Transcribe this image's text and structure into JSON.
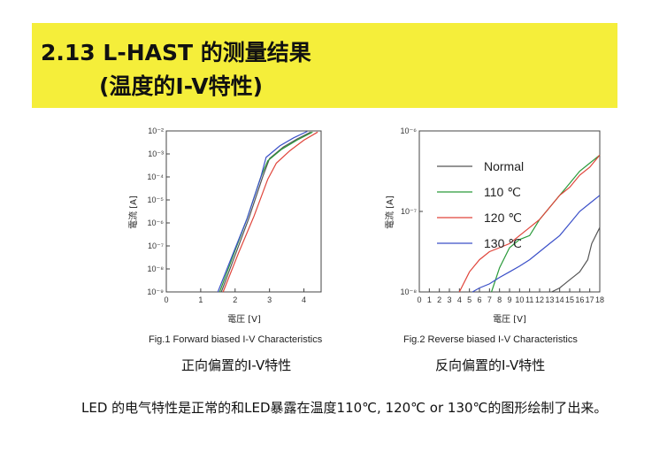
{
  "header": {
    "title_line1": "2.13 L-HAST 的测量结果",
    "title_line2": "(温度的I-V特性)"
  },
  "colors": {
    "banner": "#f5ee3a",
    "normal": "#555555",
    "t110": "#2a9a3a",
    "t120": "#e0443a",
    "t130": "#3a4fc8"
  },
  "chart_data": [
    {
      "type": "line",
      "scale": "log-y",
      "caption": "Fig.1 Forward biased I-V Characteristics",
      "xlabel": "電圧 [V]",
      "ylabel": "電流 [A]",
      "xlim": [
        0,
        4.5
      ],
      "xticks": [
        "0",
        "1",
        "2",
        "3",
        "4"
      ],
      "ylim_exp": [
        -9,
        -2
      ],
      "yticks": [
        "10⁻²",
        "10⁻³",
        "10⁻⁴",
        "10⁻⁵",
        "10⁻⁶",
        "10⁻⁷",
        "10⁻⁸",
        "10⁻⁹"
      ],
      "series": [
        {
          "color_key": "normal",
          "x": [
            1.6,
            2.0,
            2.4,
            2.8,
            3.0,
            3.4,
            3.8,
            4.2
          ],
          "log10_y": [
            -9,
            -7.4,
            -5.8,
            -4.0,
            -3.2,
            -2.7,
            -2.35,
            -2.05
          ]
        },
        {
          "color_key": "t110",
          "x": [
            1.55,
            1.95,
            2.35,
            2.75,
            2.95,
            3.35,
            3.8,
            4.25
          ],
          "log10_y": [
            -9,
            -7.4,
            -5.8,
            -4.0,
            -3.3,
            -2.8,
            -2.4,
            -2.05
          ]
        },
        {
          "color_key": "t120",
          "x": [
            1.65,
            2.1,
            2.55,
            2.95,
            3.2,
            3.6,
            4.0,
            4.4
          ],
          "log10_y": [
            -9,
            -7.3,
            -5.7,
            -4.1,
            -3.4,
            -2.85,
            -2.4,
            -2.05
          ]
        },
        {
          "color_key": "t130",
          "x": [
            1.5,
            1.95,
            2.35,
            2.75,
            2.9,
            3.3,
            3.7,
            4.1
          ],
          "log10_y": [
            -9,
            -7.3,
            -5.8,
            -4.0,
            -3.15,
            -2.65,
            -2.3,
            -2.02
          ]
        }
      ]
    },
    {
      "type": "line",
      "scale": "log-y",
      "caption": "Fig.2 Reverse biased I-V Characteristics",
      "xlabel": "電圧 [V]",
      "ylabel": "電流 [A]",
      "xlim": [
        0,
        18
      ],
      "xticks": [
        "0",
        "1",
        "2",
        "3",
        "4",
        "5",
        "6",
        "7",
        "8",
        "9",
        "10",
        "11",
        "12",
        "13",
        "14",
        "15",
        "16",
        "17",
        "18"
      ],
      "ylim_exp": [
        -8,
        -6
      ],
      "yticks": [
        "10⁻⁶",
        "10⁻⁷",
        "10⁻⁸"
      ],
      "legend": [
        {
          "label": "Normal",
          "color_key": "normal"
        },
        {
          "label": "110 ℃",
          "color_key": "t110"
        },
        {
          "label": "120 ℃",
          "color_key": "t120"
        },
        {
          "label": "130 ℃",
          "color_key": "t130"
        }
      ],
      "series": [
        {
          "color_key": "normal",
          "x": [
            13.2,
            14,
            15,
            15.5,
            16,
            16.8,
            17.2,
            18
          ],
          "log10_y": [
            -8,
            -7.95,
            -7.85,
            -7.8,
            -7.75,
            -7.6,
            -7.4,
            -7.2
          ]
        },
        {
          "color_key": "t110",
          "x": [
            7.2,
            8,
            9,
            10,
            11,
            12,
            13,
            14,
            15,
            16,
            17,
            18
          ],
          "log10_y": [
            -8,
            -7.7,
            -7.45,
            -7.35,
            -7.3,
            -7.1,
            -6.95,
            -6.8,
            -6.65,
            -6.5,
            -6.4,
            -6.3
          ]
        },
        {
          "color_key": "t120",
          "x": [
            4.0,
            5,
            6,
            7,
            8,
            9,
            10,
            11,
            12,
            13,
            14,
            15,
            16,
            17,
            18
          ],
          "log10_y": [
            -8,
            -7.75,
            -7.6,
            -7.5,
            -7.45,
            -7.4,
            -7.3,
            -7.2,
            -7.1,
            -6.95,
            -6.8,
            -6.7,
            -6.55,
            -6.45,
            -6.3
          ]
        },
        {
          "color_key": "t130",
          "x": [
            5.3,
            6,
            7,
            8,
            9,
            10,
            11,
            12,
            13,
            14,
            15,
            16,
            17,
            18
          ],
          "log10_y": [
            -8,
            -7.95,
            -7.9,
            -7.82,
            -7.75,
            -7.68,
            -7.6,
            -7.5,
            -7.4,
            -7.3,
            -7.15,
            -7.0,
            -6.9,
            -6.8
          ]
        }
      ]
    }
  ],
  "subtitles": {
    "forward": "正向偏置的I-V特性",
    "reverse": "反向偏置的I-V特性"
  },
  "description": "LED 的电气特性是正常的和LED暴露在温度110℃, 120℃ or 130℃的图形绘制了出来。"
}
